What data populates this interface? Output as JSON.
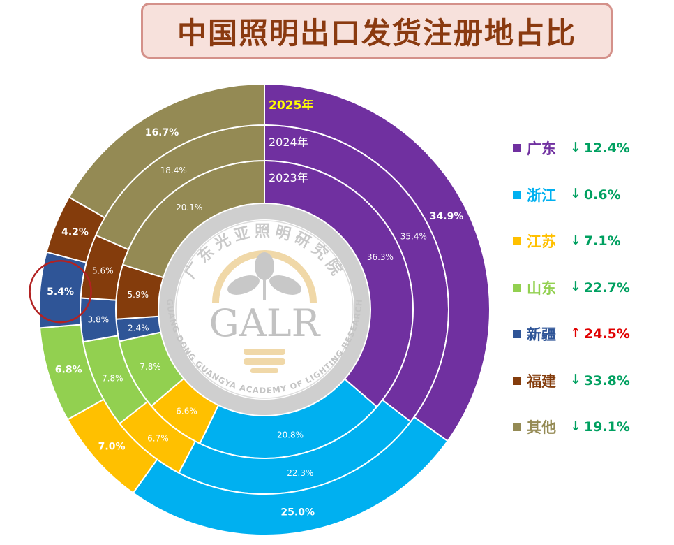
{
  "title": "中国照明出口发货注册地占比",
  "watermark": {
    "org_cn": "广东光亚照明研究院",
    "acronym": "GALR",
    "org_en": "GUANG DONG GUANGYA ACADEMY OF LIGHTING RESEARCH"
  },
  "chart_data": {
    "type": "donut",
    "categories": [
      "广东",
      "浙江",
      "江苏",
      "山东",
      "新疆",
      "福建",
      "其他"
    ],
    "colors": [
      "#7030a0",
      "#00b0f0",
      "#ffc000",
      "#92d050",
      "#2f5597",
      "#843c0c",
      "#948a54"
    ],
    "series": [
      {
        "name": "2023年",
        "values": [
          36.3,
          20.8,
          6.6,
          7.8,
          2.4,
          5.9,
          20.1
        ]
      },
      {
        "name": "2024年",
        "values": [
          35.4,
          22.3,
          6.7,
          7.8,
          3.8,
          5.6,
          18.4
        ]
      },
      {
        "name": "2025年",
        "values": [
          34.9,
          25.0,
          7.0,
          6.8,
          5.4,
          4.2,
          16.7
        ]
      }
    ],
    "value_labels": [
      [
        "36.3%",
        "20.8%",
        "6.6%",
        "7.8%",
        "2.4%",
        "5.9%",
        "20.1%"
      ],
      [
        "35.4%",
        "22.3%",
        "6.7%",
        "7.8%",
        "3.8%",
        "5.6%",
        "18.4%"
      ],
      [
        "34.9%",
        "25.0%",
        "7.0%",
        "6.8%",
        "5.4%",
        "4.2%",
        "16.7%"
      ]
    ],
    "ring_label_colors": [
      "#ffffff",
      "#ffffff",
      "#ffff00"
    ],
    "highlight": {
      "ring": 2,
      "category": "新疆"
    },
    "legend_position": "right"
  },
  "legend": [
    {
      "label": "广东",
      "direction": "down",
      "arrow": "↓",
      "change": "12.4%",
      "color": "#7030a0",
      "change_color": "#00a060"
    },
    {
      "label": "浙江",
      "direction": "down",
      "arrow": "↓",
      "change": "0.6%",
      "color": "#00b0f0",
      "change_color": "#00a060"
    },
    {
      "label": "江苏",
      "direction": "down",
      "arrow": "↓",
      "change": "7.1%",
      "color": "#ffc000",
      "change_color": "#00a060"
    },
    {
      "label": "山东",
      "direction": "down",
      "arrow": "↓",
      "change": "22.7%",
      "color": "#92d050",
      "change_color": "#00a060"
    },
    {
      "label": "新疆",
      "direction": "up",
      "arrow": "↑",
      "change": "24.5%",
      "color": "#2f5597",
      "change_color": "#e00000"
    },
    {
      "label": "福建",
      "direction": "down",
      "arrow": "↓",
      "change": "33.8%",
      "color": "#843c0c",
      "change_color": "#00a060"
    },
    {
      "label": "其他",
      "direction": "down",
      "arrow": "↓",
      "change": "19.1%",
      "color": "#948a54",
      "change_color": "#00a060"
    }
  ]
}
